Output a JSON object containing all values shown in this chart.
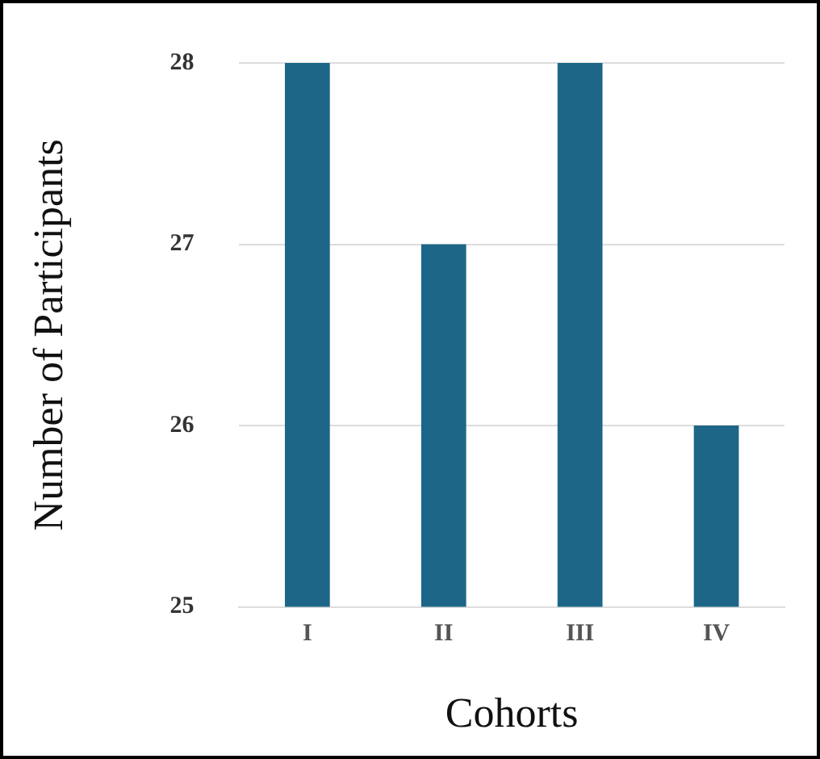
{
  "chart_data": {
    "type": "bar",
    "xlabel": "Cohorts",
    "ylabel": "Number of Participants",
    "categories": [
      "I",
      "II",
      "III",
      "IV"
    ],
    "values": [
      28,
      27,
      28,
      26
    ],
    "color": "#1d6688",
    "ylim": [
      25,
      28
    ],
    "yticks": [
      25,
      26,
      27,
      28
    ],
    "grid": "y"
  }
}
